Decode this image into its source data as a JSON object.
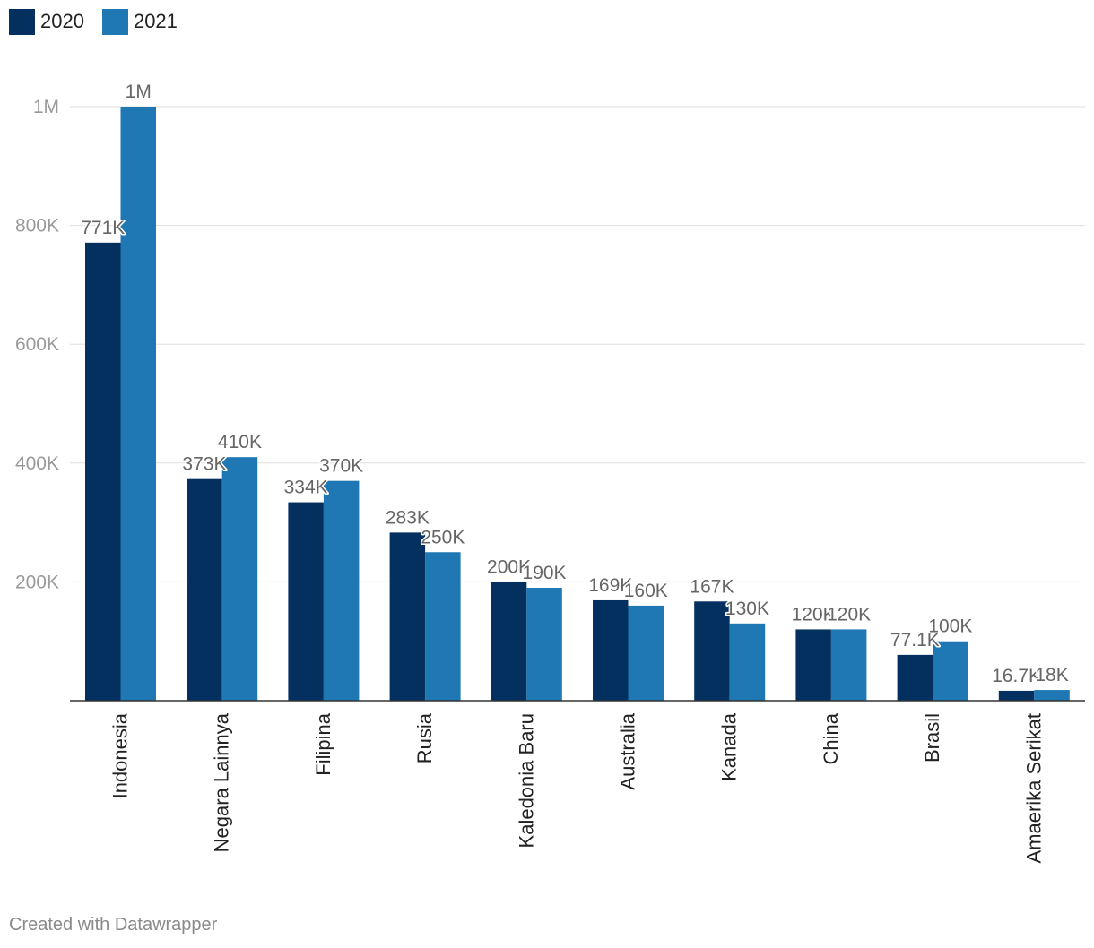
{
  "chart_data": {
    "type": "bar",
    "title": "",
    "xlabel": "",
    "ylabel": "",
    "ylim": [
      0,
      1000000
    ],
    "yticks": [
      {
        "value": 200000,
        "label": "200K"
      },
      {
        "value": 400000,
        "label": "400K"
      },
      {
        "value": 600000,
        "label": "600K"
      },
      {
        "value": 800000,
        "label": "800K"
      },
      {
        "value": 1000000,
        "label": "1M"
      }
    ],
    "grid": true,
    "legend_position": "top-left",
    "categories": [
      "Indonesia",
      "Negara Lainnya",
      "Filipina",
      "Rusia",
      "Kaledonia Baru",
      "Australia",
      "Kanada",
      "China",
      "Brasil",
      "Amaerika Serikat"
    ],
    "series": [
      {
        "name": "2020",
        "color": "#03305f",
        "values": [
          771000,
          373000,
          334000,
          283000,
          200000,
          169000,
          167000,
          120000,
          77100,
          16700
        ],
        "labels": [
          "771K",
          "373K",
          "334K",
          "283K",
          "200K",
          "169K",
          "167K",
          "120K",
          "77.1K",
          "16.7K"
        ]
      },
      {
        "name": "2021",
        "color": "#1f77b4",
        "values": [
          1000000,
          410000,
          370000,
          250000,
          190000,
          160000,
          130000,
          120000,
          100000,
          18000
        ],
        "labels": [
          "1M",
          "410K",
          "370K",
          "250K",
          "190K",
          "160K",
          "130K",
          "120K",
          "100K",
          "18K"
        ]
      }
    ]
  },
  "footer": {
    "credit": "Created with Datawrapper"
  }
}
